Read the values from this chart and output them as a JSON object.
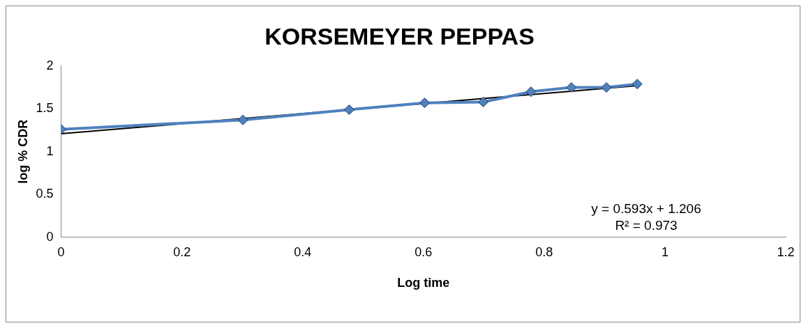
{
  "chart_data": {
    "type": "line",
    "title": "KORSEMEYER PEPPAS",
    "xlabel": "Log time",
    "ylabel": "log % CDR",
    "xlim": [
      0,
      1.2
    ],
    "xticks": [
      0,
      0.2,
      0.4,
      0.6,
      0.8,
      1,
      1.2
    ],
    "ylim": [
      0,
      2
    ],
    "yticks": [
      0,
      0.5,
      1,
      1.5,
      2
    ],
    "grid": false,
    "legend": false,
    "marker": "diamond",
    "line_style": "solid",
    "series": [
      {
        "color": "#4f81bd",
        "x": [
          0,
          0.301,
          0.477,
          0.602,
          0.699,
          0.778,
          0.845,
          0.903,
          0.954
        ],
        "values": [
          1.26,
          1.37,
          1.49,
          1.57,
          1.58,
          1.7,
          1.75,
          1.75,
          1.79
        ]
      },
      {
        "type": "line",
        "color": "#000000",
        "marker": "none",
        "x": [
          0,
          0.954
        ],
        "values": [
          1.21,
          1.77
        ]
      }
    ],
    "annotations": [
      "y = 0.593x + 1.206",
      "R² = 0.973"
    ]
  }
}
